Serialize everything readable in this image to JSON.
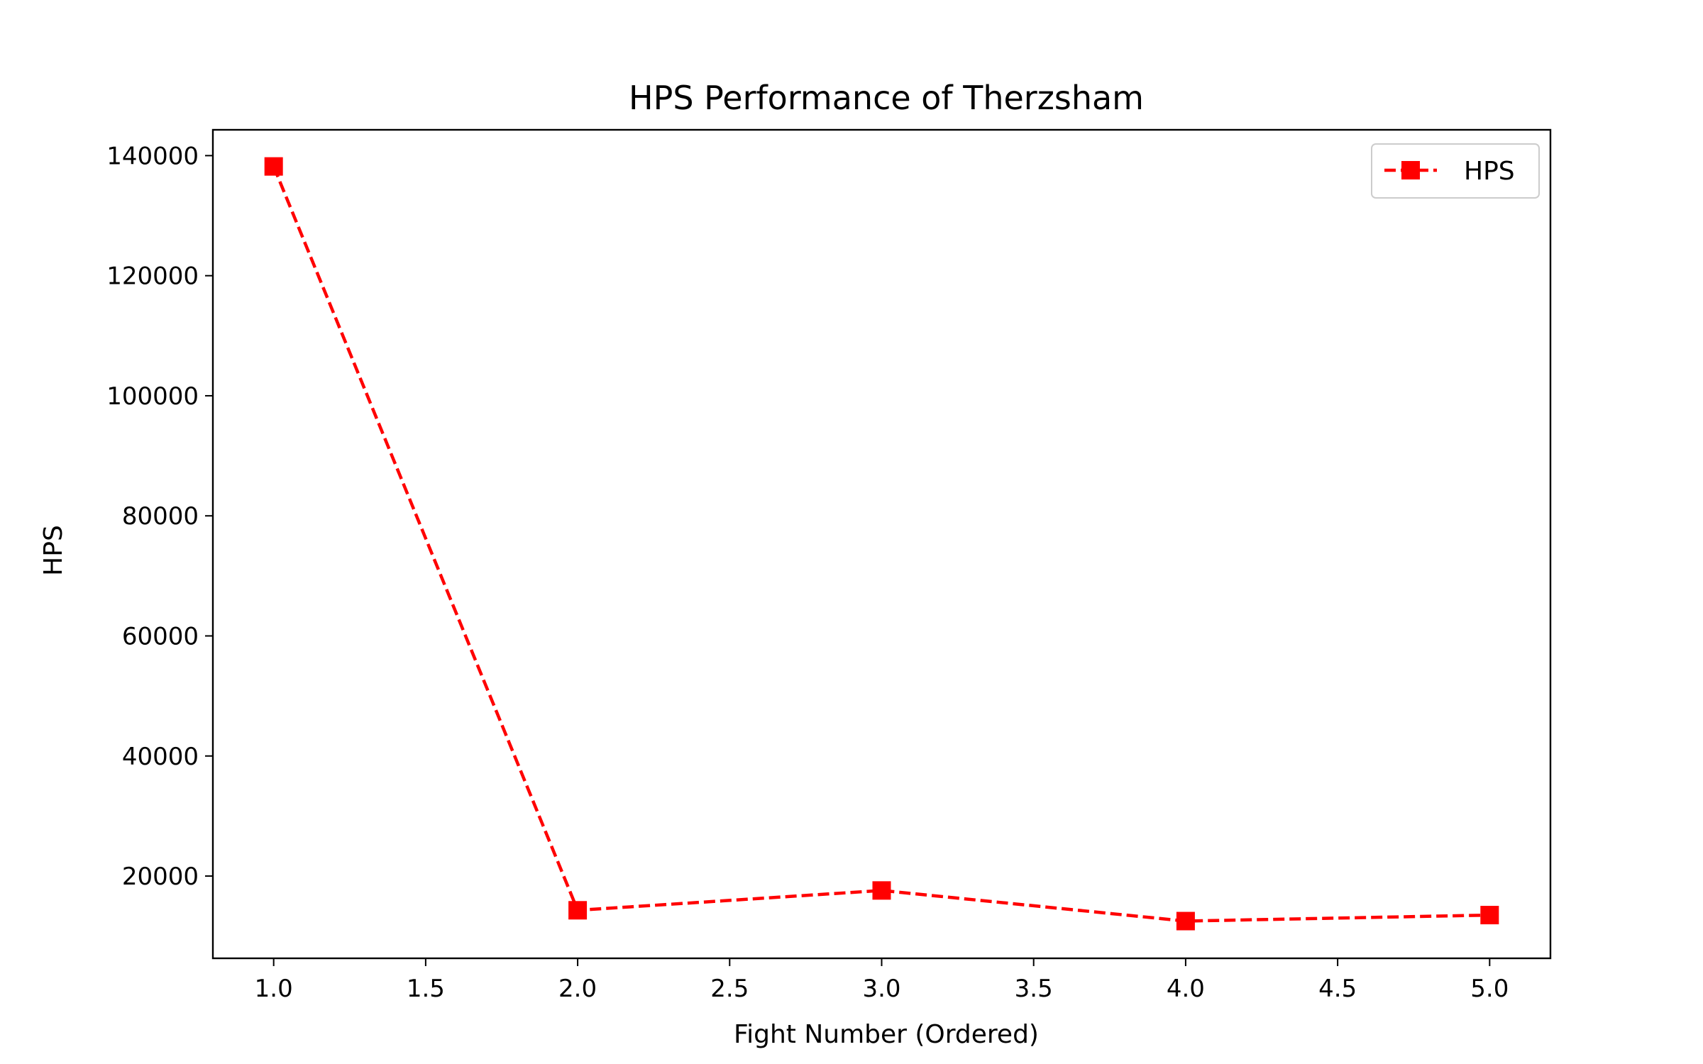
{
  "chart_data": {
    "type": "line",
    "title": "HPS Performance of Therzsham",
    "xlabel": "Fight Number (Ordered)",
    "ylabel": "HPS",
    "x": [
      1,
      2,
      3,
      4,
      5
    ],
    "series": [
      {
        "name": "HPS",
        "values": [
          138200,
          14300,
          17600,
          12500,
          13500
        ],
        "color": "#ff0000",
        "line_style": "dashed",
        "marker": "square"
      }
    ],
    "xlim": [
      0.8,
      5.2
    ],
    "ylim": [
      6300,
      144300
    ],
    "x_ticks": [
      1.0,
      1.5,
      2.0,
      2.5,
      3.0,
      3.5,
      4.0,
      4.5,
      5.0
    ],
    "x_tick_labels": [
      "1.0",
      "1.5",
      "2.0",
      "2.5",
      "3.0",
      "3.5",
      "4.0",
      "4.5",
      "5.0"
    ],
    "y_ticks": [
      20000,
      40000,
      60000,
      80000,
      100000,
      120000,
      140000
    ],
    "y_tick_labels": [
      "20000",
      "40000",
      "60000",
      "80000",
      "100000",
      "120000",
      "140000"
    ],
    "grid": false,
    "legend": {
      "placement": "top-right",
      "entries": [
        "HPS"
      ]
    }
  }
}
